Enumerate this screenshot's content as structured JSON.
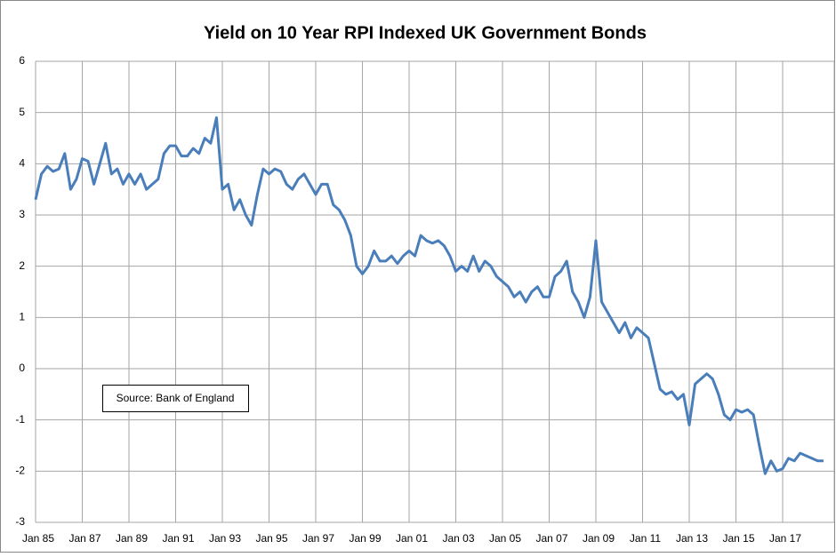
{
  "chart_data": {
    "type": "line",
    "title": "Yield on 10 Year RPI Indexed UK Government Bonds",
    "annotation": "Source: Bank of England",
    "categories": [
      "Jan 85",
      null,
      null,
      null,
      null,
      null,
      null,
      null,
      "Jan 87",
      null,
      null,
      null,
      null,
      null,
      null,
      null,
      "Jan 89",
      null,
      null,
      null,
      null,
      null,
      null,
      null,
      "Jan 91",
      null,
      null,
      null,
      null,
      null,
      null,
      null,
      "Jan 93",
      null,
      null,
      null,
      null,
      null,
      null,
      null,
      "Jan 95",
      null,
      null,
      null,
      null,
      null,
      null,
      null,
      "Jan 97",
      null,
      null,
      null,
      null,
      null,
      null,
      null,
      "Jan 99",
      null,
      null,
      null,
      null,
      null,
      null,
      null,
      "Jan 01",
      null,
      null,
      null,
      null,
      null,
      null,
      null,
      "Jan 03",
      null,
      null,
      null,
      null,
      null,
      null,
      null,
      "Jan 05",
      null,
      null,
      null,
      null,
      null,
      null,
      null,
      "Jan 07",
      null,
      null,
      null,
      null,
      null,
      null,
      null,
      "Jan 09",
      null,
      null,
      null,
      null,
      null,
      null,
      null,
      "Jan 11",
      null,
      null,
      null,
      null,
      null,
      null,
      null,
      "Jan 13",
      null,
      null,
      null,
      null,
      null,
      null,
      null,
      "Jan 15",
      null,
      null,
      null,
      null,
      null,
      null,
      null,
      "Jan 17",
      null,
      null,
      null,
      null,
      null,
      null,
      null
    ],
    "values": [
      3.3,
      3.8,
      3.95,
      3.85,
      3.9,
      4.2,
      3.5,
      3.7,
      4.1,
      4.05,
      3.6,
      4.0,
      4.4,
      3.8,
      3.9,
      3.6,
      3.8,
      3.6,
      3.8,
      3.5,
      3.6,
      3.7,
      4.2,
      4.35,
      4.35,
      4.15,
      4.15,
      4.3,
      4.2,
      4.5,
      4.4,
      4.9,
      3.5,
      3.6,
      3.1,
      3.3,
      3.0,
      2.8,
      3.4,
      3.9,
      3.8,
      3.9,
      3.85,
      3.6,
      3.5,
      3.7,
      3.8,
      3.6,
      3.4,
      3.6,
      3.6,
      3.2,
      3.1,
      2.9,
      2.6,
      2.0,
      1.85,
      2.0,
      2.3,
      2.1,
      2.1,
      2.2,
      2.05,
      2.2,
      2.3,
      2.2,
      2.6,
      2.5,
      2.45,
      2.5,
      2.4,
      2.2,
      1.9,
      2.0,
      1.9,
      2.2,
      1.9,
      2.1,
      2.0,
      1.8,
      1.7,
      1.6,
      1.4,
      1.5,
      1.3,
      1.5,
      1.6,
      1.4,
      1.4,
      1.8,
      1.9,
      2.1,
      1.5,
      1.3,
      1.0,
      1.4,
      2.5,
      1.3,
      1.1,
      0.9,
      0.7,
      0.9,
      0.6,
      0.8,
      0.7,
      0.6,
      0.1,
      -0.4,
      -0.5,
      -0.45,
      -0.6,
      -0.5,
      -1.1,
      -0.3,
      -0.2,
      -0.1,
      -0.2,
      -0.5,
      -0.9,
      -1.0,
      -0.8,
      -0.85,
      -0.8,
      -0.9,
      -1.5,
      -2.05,
      -1.8,
      -2.0,
      -1.95,
      -1.75,
      -1.8,
      -1.65,
      -1.7,
      -1.75,
      -1.8,
      -1.8
    ],
    "color": "#4a7ebb",
    "ylim": [
      -3,
      6
    ],
    "yticks": [
      -3,
      -2,
      -1,
      0,
      1,
      2,
      3,
      4,
      5,
      6
    ],
    "grid": true
  }
}
